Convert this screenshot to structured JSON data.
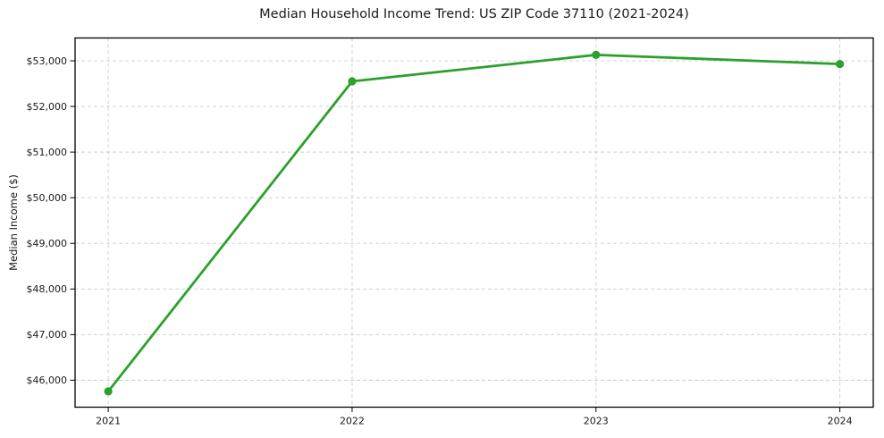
{
  "figure": {
    "background": "#ffffff"
  },
  "chart_data": {
    "type": "line",
    "title": "Median Household Income Trend: US ZIP Code 37110 (2021-2024)",
    "xlabel": "",
    "ylabel": "Median Income ($)",
    "x": [
      2021,
      2022,
      2023,
      2024
    ],
    "x_tick_labels": [
      "2021",
      "2022",
      "2023",
      "2024"
    ],
    "series": [
      {
        "name": "Median Household Income",
        "values": [
          45755,
          52550,
          53130,
          52930
        ],
        "color": "#2ca02c",
        "marker": "circle"
      }
    ],
    "yticks": [
      46000,
      47000,
      48000,
      49000,
      50000,
      51000,
      52000,
      53000
    ],
    "ytick_labels": [
      "$46,000",
      "$47,000",
      "$48,000",
      "$49,000",
      "$50,000",
      "$51,000",
      "$52,000",
      "$53,000"
    ],
    "xlim": [
      2020.864,
      2024.137
    ],
    "ylim": [
      45410,
      53500
    ],
    "grid": true,
    "grid_style": "dashed",
    "grid_color": "#cccccc",
    "axis_color": "#000000",
    "text_color": "#1a1a1a",
    "legend": false
  }
}
